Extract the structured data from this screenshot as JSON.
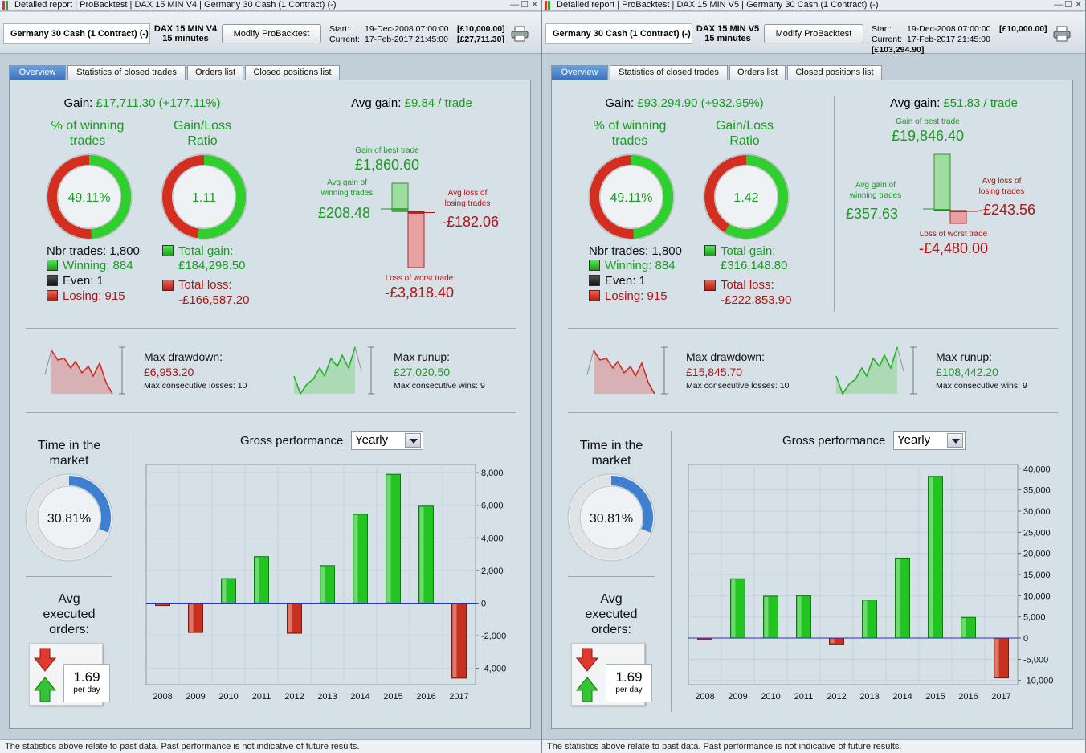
{
  "footer_text": "The statistics above relate to past data. Past performance is not indicative of future results.",
  "tabs": [
    "Overview",
    "Statistics of closed trades",
    "Orders list",
    "Closed positions list"
  ],
  "colors": {
    "green": "#1c9a22",
    "red": "#b01515",
    "blue": "#3f7fd0",
    "bar_green": "#22c422",
    "bar_red": "#c83020"
  },
  "panels": [
    {
      "title": {
        "app": "Detailed report",
        "module": "ProBacktest",
        "system": "DAX 15 MIN V4",
        "instrument": "Germany 30 Cash (1 Contract) (-)"
      },
      "header": {
        "instrument": "Germany 30 Cash (1 Contract) (-)",
        "system_name": "DAX 15 MIN V4",
        "timeframe": "15 minutes",
        "modify_button": "Modify ProBacktest",
        "start_label": "Start:",
        "start_date": "19-Dec-2008 07:00:00",
        "start_capital": "[£10,000.00]",
        "current_label": "Current:",
        "current_date": "17-Feb-2017 21:45:00",
        "current_capital": "[£27,711.30]"
      },
      "gain": {
        "label": "Gain:",
        "value": "£17,711.30 (+177.11%)"
      },
      "winning": {
        "label_1": "% of winning",
        "label_2": "trades",
        "value": "49.11%",
        "fraction": 0.4911
      },
      "ratio": {
        "label_1": "Gain/Loss",
        "label_2": "Ratio",
        "value": "1.11",
        "fraction": 0.526
      },
      "nbr_trades": "Nbr trades: 1,800",
      "winning_count": "Winning: 884",
      "even_count": "Even: 1",
      "losing_count": "Losing: 915",
      "total_gain": {
        "label": "Total gain:",
        "value": "£184,298.50"
      },
      "total_loss": {
        "label": "Total loss:",
        "value": "-£166,587.20"
      },
      "avg_gain": {
        "label": "Avg gain:",
        "value": "£9.84 / trade"
      },
      "best_trade": {
        "label": "Gain of best trade",
        "value": "£1,860.60",
        "amount": 1860.6
      },
      "avg_win": {
        "label_1": "Avg gain of",
        "label_2": "winning trades",
        "value": "£208.48",
        "amount": 208.48
      },
      "avg_loss": {
        "label_1": "Avg loss of",
        "label_2": "losing trades",
        "value": "-£182.06",
        "amount": -182.06
      },
      "worst_trade": {
        "label": "Loss of worst trade",
        "value": "-£3,818.40",
        "amount": -3818.4
      },
      "drawdown": {
        "label": "Max drawdown:",
        "value": "£6,953.20",
        "consec": "Max consecutive losses: 10"
      },
      "runup": {
        "label": "Max runup:",
        "value": "£27,020.50",
        "consec": "Max consecutive wins: 9"
      },
      "time_in_market": {
        "label_1": "Time in the",
        "label_2": "market",
        "value": "30.81%",
        "fraction": 0.3081
      },
      "avg_orders": {
        "label_1": "Avg",
        "label_2": "executed",
        "label_3": "orders:",
        "value": "1.69",
        "unit": "per day"
      },
      "gross": {
        "label": "Gross performance",
        "period": "Yearly"
      },
      "chart_data": {
        "type": "bar",
        "categories": [
          "2008",
          "2009",
          "2010",
          "2011",
          "2012",
          "2013",
          "2014",
          "2015",
          "2016",
          "2017"
        ],
        "values": [
          -150,
          -1800,
          1500,
          2850,
          -1850,
          2300,
          5450,
          7900,
          5950,
          -4600
        ],
        "ylim": [
          -5000,
          8500
        ],
        "yticks": [
          8000,
          6000,
          4000,
          2000,
          0,
          -2000,
          -4000
        ],
        "ytick_labels": [
          "8,000",
          "6,000",
          "4,000",
          "2,000",
          "0",
          "-2,000",
          "-4,000"
        ]
      }
    },
    {
      "title": {
        "app": "Detailed report",
        "module": "ProBacktest",
        "system": "DAX 15 MIN V5",
        "instrument": "Germany 30 Cash (1 Contract) (-)"
      },
      "header": {
        "instrument": "Germany 30 Cash (1 Contract) (-)",
        "system_name": "DAX 15 MIN V5",
        "timeframe": "15 minutes",
        "modify_button": "Modify ProBacktest",
        "start_label": "Start:",
        "start_date": "19-Dec-2008 07:00:00",
        "start_capital": "[£10,000.00]",
        "current_label": "Current:",
        "current_date": "17-Feb-2017 21:45:00",
        "current_capital": "[£103,294.90]"
      },
      "gain": {
        "label": "Gain:",
        "value": "£93,294.90 (+932.95%)"
      },
      "winning": {
        "label_1": "% of winning",
        "label_2": "trades",
        "value": "49.11%",
        "fraction": 0.4911
      },
      "ratio": {
        "label_1": "Gain/Loss",
        "label_2": "Ratio",
        "value": "1.42",
        "fraction": 0.587
      },
      "nbr_trades": "Nbr trades: 1,800",
      "winning_count": "Winning: 884",
      "even_count": "Even: 1",
      "losing_count": "Losing: 915",
      "total_gain": {
        "label": "Total gain:",
        "value": "£316,148.80"
      },
      "total_loss": {
        "label": "Total loss:",
        "value": "-£222,853.90"
      },
      "avg_gain": {
        "label": "Avg gain:",
        "value": "£51.83 / trade"
      },
      "best_trade": {
        "label": "Gain of best trade",
        "value": "£19,846.40",
        "amount": 19846.4
      },
      "avg_win": {
        "label_1": "Avg gain of",
        "label_2": "winning trades",
        "value": "£357.63",
        "amount": 357.63
      },
      "avg_loss": {
        "label_1": "Avg loss of",
        "label_2": "losing trades",
        "value": "-£243.56",
        "amount": -243.56
      },
      "worst_trade": {
        "label": "Loss of worst trade",
        "value": "-£4,480.00",
        "amount": -4480.0
      },
      "drawdown": {
        "label": "Max drawdown:",
        "value": "£15,845.70",
        "consec": "Max consecutive losses: 10"
      },
      "runup": {
        "label": "Max runup:",
        "value": "£108,442.20",
        "consec": "Max consecutive wins: 9"
      },
      "time_in_market": {
        "label_1": "Time in the",
        "label_2": "market",
        "value": "30.81%",
        "fraction": 0.3081
      },
      "avg_orders": {
        "label_1": "Avg",
        "label_2": "executed",
        "label_3": "orders:",
        "value": "1.69",
        "unit": "per day"
      },
      "gross": {
        "label": "Gross performance",
        "period": "Yearly"
      },
      "chart_data": {
        "type": "bar",
        "categories": [
          "2008",
          "2009",
          "2010",
          "2011",
          "2012",
          "2013",
          "2014",
          "2015",
          "2016",
          "2017"
        ],
        "values": [
          -200,
          14000,
          9900,
          10000,
          -1400,
          9000,
          18900,
          38200,
          4900,
          -9400
        ],
        "ylim": [
          -11000,
          41000
        ],
        "yticks": [
          40000,
          35000,
          30000,
          25000,
          20000,
          15000,
          10000,
          5000,
          0,
          -5000,
          -10000
        ],
        "ytick_labels": [
          "40,000",
          "35,000",
          "30,000",
          "25,000",
          "20,000",
          "15,000",
          "10,000",
          "5,000",
          "0",
          "-5,000",
          "-10,000"
        ]
      }
    }
  ]
}
